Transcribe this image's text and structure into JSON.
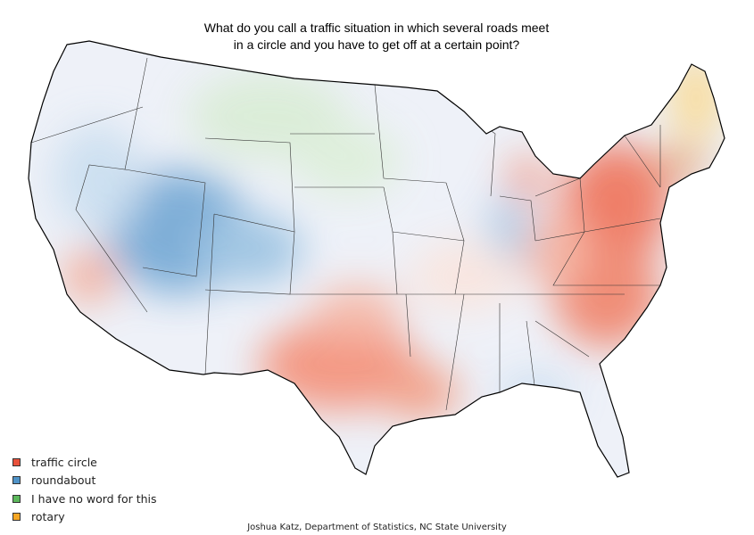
{
  "title": "What do you call a traffic situation in which several roads meet in a circle and you have to get off at a certain point?",
  "legend": [
    {
      "label": "traffic circle",
      "color": "#e8513b"
    },
    {
      "label": "roundabout",
      "color": "#4f93c8"
    },
    {
      "label": "I have no word for this",
      "color": "#5cb85c"
    },
    {
      "label": "rotary",
      "color": "#f5a623"
    }
  ],
  "credit": "Joshua Katz, Department of Statistics, NC State University"
}
